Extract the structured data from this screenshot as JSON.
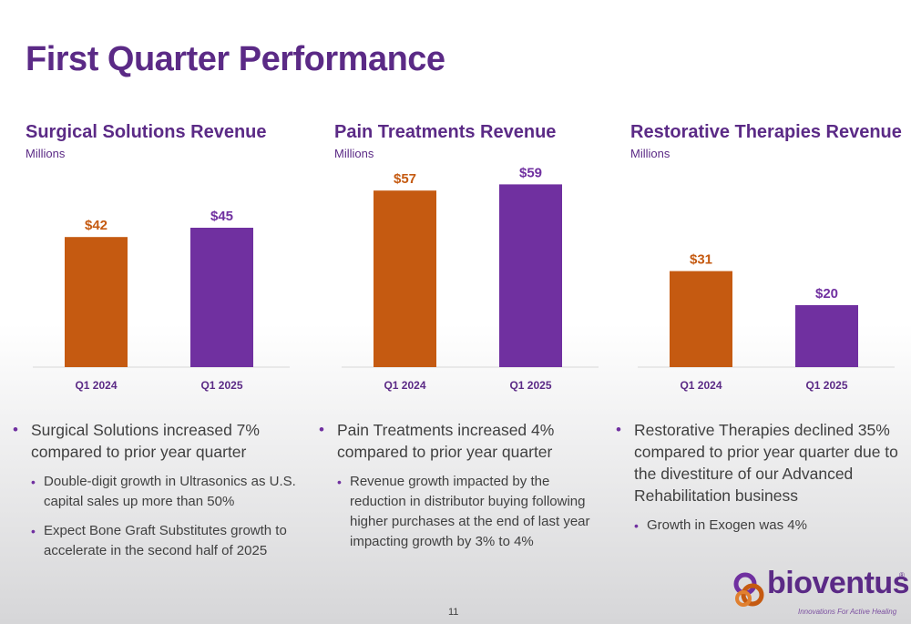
{
  "slide": {
    "title": "First Quarter Performance",
    "page_number": "11"
  },
  "colors": {
    "prior_year": "#c55a11",
    "current_year": "#7030a0",
    "title": "#5b2a86",
    "text": "#404040"
  },
  "panels": [
    {
      "title": "Surgical Solutions Revenue",
      "subtitle": "Millions",
      "bullets": [
        {
          "text": "Surgical Solutions increased 7% compared to prior year quarter",
          "level": 1
        },
        {
          "text": "Double-digit growth in Ultrasonics as U.S. capital sales up more than 50%",
          "level": 2
        },
        {
          "text": "Expect Bone Graft Substitutes growth to accelerate in the second half of 2025",
          "level": 2
        }
      ]
    },
    {
      "title": "Pain Treatments Revenue",
      "subtitle": "Millions",
      "bullets": [
        {
          "text": "Pain Treatments increased 4% compared to prior year quarter",
          "level": 1
        },
        {
          "text": "Revenue growth impacted by the reduction in distributor buying following higher purchases at the end of last year impacting growth by 3% to 4%",
          "level": 2
        }
      ]
    },
    {
      "title": "Restorative Therapies Revenue",
      "subtitle": "Millions",
      "bullets": [
        {
          "text": "Restorative Therapies declined 35% compared to prior year quarter due to the divestiture of our Advanced Rehabilitation business",
          "level": 1
        },
        {
          "text": "Growth in Exogen was 4%",
          "level": 2
        }
      ]
    }
  ],
  "chart_data": [
    {
      "type": "bar",
      "title": "Surgical Solutions Revenue",
      "subtitle": "Millions",
      "categories": [
        "Q1 2024",
        "Q1 2025"
      ],
      "values": [
        42,
        45
      ],
      "data_labels": [
        "$42",
        "$45"
      ],
      "bar_colors": [
        "#c55a11",
        "#7030a0"
      ],
      "grid": false
    },
    {
      "type": "bar",
      "title": "Pain Treatments Revenue",
      "subtitle": "Millions",
      "categories": [
        "Q1 2024",
        "Q1 2025"
      ],
      "values": [
        57,
        59
      ],
      "data_labels": [
        "$57",
        "$59"
      ],
      "bar_colors": [
        "#c55a11",
        "#7030a0"
      ],
      "grid": false
    },
    {
      "type": "bar",
      "title": "Restorative Therapies Revenue",
      "subtitle": "Millions",
      "categories": [
        "Q1 2024",
        "Q1 2025"
      ],
      "values": [
        31,
        20
      ],
      "data_labels": [
        "$31",
        "$20"
      ],
      "bar_colors": [
        "#c55a11",
        "#7030a0"
      ],
      "grid": false
    }
  ],
  "logo": {
    "name": "bioventus",
    "registered": "®",
    "tagline": "Innovations For Active Healing"
  }
}
